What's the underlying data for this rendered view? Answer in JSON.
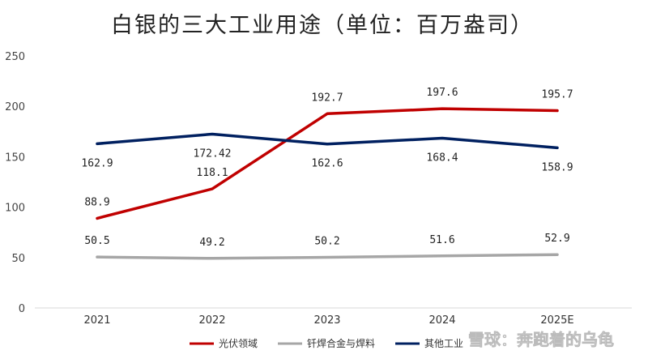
{
  "chart_data": {
    "type": "line",
    "title": "白银的三大工业用途（单位：百万盎司）",
    "categories": [
      "2021",
      "2022",
      "2023",
      "2024",
      "2025E"
    ],
    "ylim": [
      0,
      250
    ],
    "yticks": [
      0,
      50,
      100,
      150,
      200,
      250
    ],
    "grid": false,
    "legend_position": "bottom",
    "series": [
      {
        "name": "光伏领域",
        "color": "#c00000",
        "values": [
          88.9,
          118.1,
          192.7,
          197.6,
          195.7
        ],
        "labels": [
          "88.9",
          "118.1",
          "192.7",
          "197.6",
          "195.7"
        ]
      },
      {
        "name": "钎焊合金与焊料",
        "color": "#a6a6a6",
        "values": [
          50.5,
          49.2,
          50.2,
          51.6,
          52.9
        ],
        "labels": [
          "50.5",
          "49.2",
          "50.2",
          "51.6",
          "52.9"
        ]
      },
      {
        "name": "其他工业",
        "color": "#002060",
        "values": [
          162.9,
          172.42,
          162.6,
          168.4,
          158.9
        ],
        "labels": [
          "162.9",
          "172.42",
          "162.6",
          "168.4",
          "158.9"
        ]
      }
    ]
  },
  "watermark": "雪球：奔跑着的乌龟"
}
